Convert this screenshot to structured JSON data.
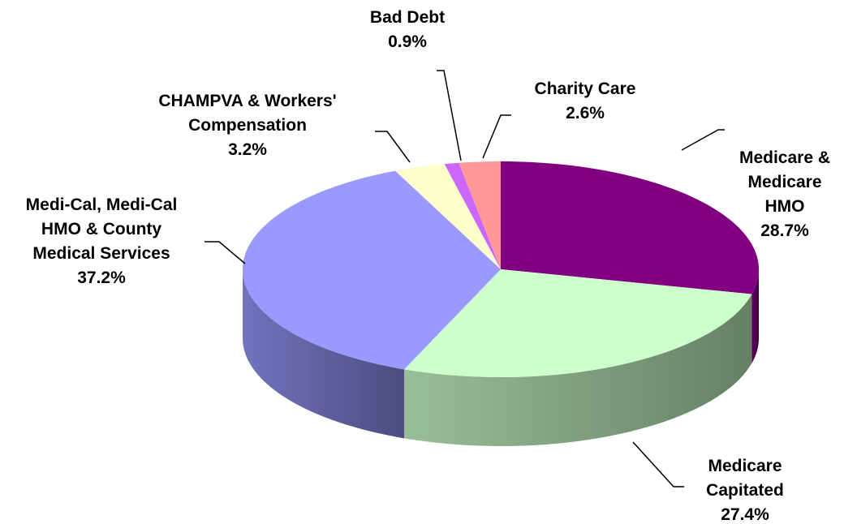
{
  "chart_data": {
    "type": "pie",
    "categories": [
      "Medicare & Medicare HMO",
      "Medicare Capitated",
      "Medi-Cal, Medi-Cal HMO & County Medical Services",
      "CHAMPVA & Workers' Compensation",
      "Bad Debt",
      "Charity Care"
    ],
    "values": [
      28.7,
      27.4,
      37.2,
      3.2,
      0.9,
      2.6
    ],
    "value_labels": [
      "28.7%",
      "27.4%",
      "37.2%",
      "3.2%",
      "0.9%",
      "2.6%"
    ],
    "colors": [
      "#800080",
      "#ccffcc",
      "#9999ff",
      "#ffffcc",
      "#cc66ff",
      "#ff9999"
    ]
  }
}
